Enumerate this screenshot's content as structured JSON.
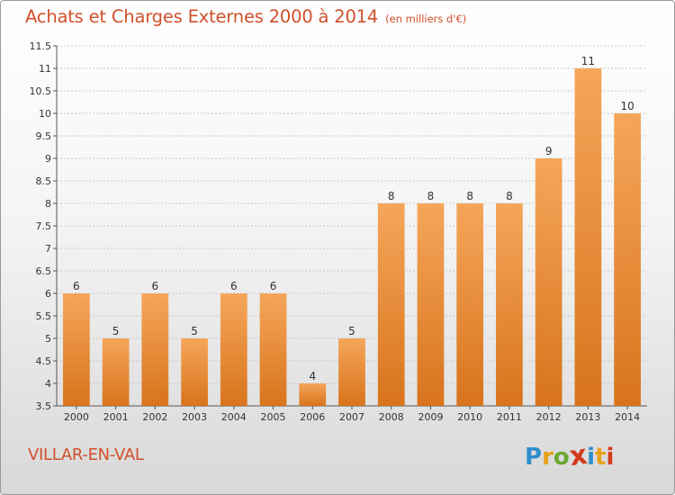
{
  "header": {
    "title": "Achats et Charges Externes 2000 à 2014",
    "subtitle": "(en milliers d'€)"
  },
  "commune": "VILLAR-EN-VAL",
  "logo": {
    "letters": [
      "P",
      "r",
      "o",
      "x",
      "i",
      "t",
      "i"
    ],
    "colors": [
      "#2e8ece",
      "#e8a21a",
      "#6aa832",
      "#d23a1e",
      "#2e8ece",
      "#e8a21a",
      "#d23a1e"
    ]
  },
  "colors": {
    "bar_top": "#f5a65a",
    "bar_bottom": "#d8741c",
    "accent": "#d0502a"
  },
  "chart_data": {
    "type": "bar",
    "categories": [
      "2000",
      "2001",
      "2002",
      "2003",
      "2004",
      "2005",
      "2006",
      "2007",
      "2008",
      "2009",
      "2010",
      "2011",
      "2012",
      "2013",
      "2014"
    ],
    "values": [
      6,
      5,
      6,
      5,
      6,
      6,
      4,
      5,
      8,
      8,
      8,
      8,
      9,
      11,
      10
    ],
    "data_labels": [
      "6",
      "5",
      "6",
      "5",
      "6",
      "6",
      "4",
      "5",
      "8",
      "8",
      "8",
      "8",
      "9",
      "11",
      "10"
    ],
    "ylim": [
      3.5,
      11.5
    ],
    "yticks": [
      3.5,
      4,
      4.5,
      5,
      5.5,
      6,
      6.5,
      7,
      7.5,
      8,
      8.5,
      9,
      9.5,
      10,
      10.5,
      11,
      11.5
    ],
    "ytick_labels": [
      "3.5",
      "4",
      "4.5",
      "5",
      "5.5",
      "6",
      "6.5",
      "7",
      "7.5",
      "8",
      "8.5",
      "9",
      "9.5",
      "10",
      "10.5",
      "11",
      "11.5"
    ],
    "grid": true
  }
}
